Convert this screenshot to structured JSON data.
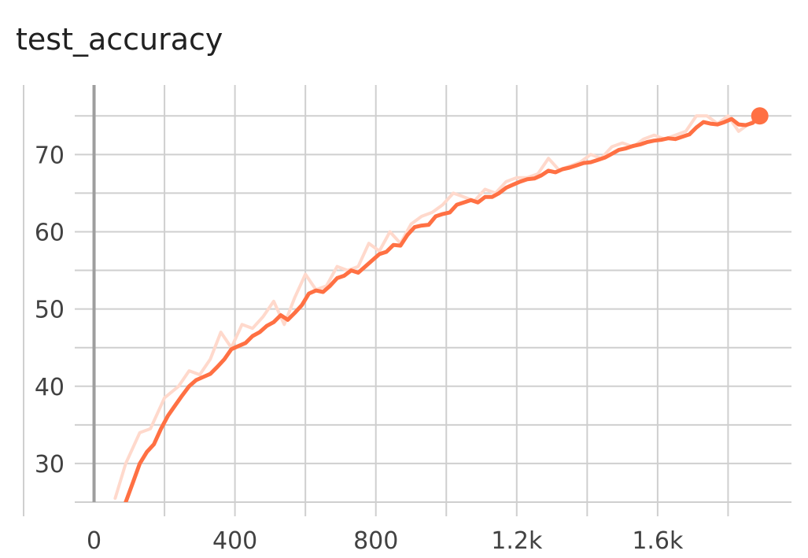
{
  "chart_data": {
    "type": "line",
    "title": "test_accuracy",
    "xlabel": "",
    "ylabel": "",
    "xlim": [
      -200,
      1980
    ],
    "ylim": [
      25,
      79
    ],
    "x_ticks": [
      0,
      400,
      800,
      1200,
      1600
    ],
    "x_tick_labels": [
      "0",
      "400",
      "800",
      "1.2k",
      "1.6k"
    ],
    "y_ticks": [
      30,
      40,
      50,
      60,
      70
    ],
    "y_tick_labels": [
      "30",
      "40",
      "50",
      "60",
      "70"
    ],
    "grid": true,
    "colors": {
      "smoothed": "#ff7043",
      "raw": "#ffd9cc",
      "grid": "#cfcfcf",
      "zero_axis": "#9e9e9e"
    },
    "series": [
      {
        "role": "raw",
        "x": [
          60,
          90,
          130,
          160,
          200,
          240,
          270,
          300,
          330,
          360,
          390,
          420,
          450,
          480,
          510,
          540,
          570,
          600,
          630,
          660,
          690,
          720,
          750,
          780,
          810,
          840,
          870,
          900,
          930,
          960,
          990,
          1020,
          1050,
          1080,
          1110,
          1140,
          1170,
          1200,
          1230,
          1260,
          1290,
          1320,
          1350,
          1380,
          1410,
          1440,
          1470,
          1500,
          1530,
          1560,
          1590,
          1620,
          1650,
          1680,
          1710,
          1740,
          1770,
          1800,
          1830,
          1860,
          1890
        ],
        "y": [
          25.5,
          30.0,
          34.0,
          34.5,
          38.5,
          40.0,
          42.0,
          41.5,
          43.5,
          47.0,
          45.0,
          48.0,
          47.5,
          49.0,
          51.0,
          48.0,
          51.5,
          54.5,
          52.5,
          53.0,
          55.5,
          55.0,
          55.5,
          58.5,
          57.5,
          60.0,
          58.5,
          61.0,
          62.0,
          62.5,
          63.5,
          65.0,
          64.5,
          64.0,
          65.5,
          65.0,
          66.5,
          67.0,
          67.0,
          67.5,
          69.5,
          68.0,
          68.5,
          69.0,
          70.0,
          69.5,
          71.0,
          71.5,
          71.0,
          72.0,
          72.5,
          72.0,
          72.5,
          73.0,
          75.0,
          75.0,
          74.0,
          75.0,
          73.0,
          74.0,
          75.0
        ]
      },
      {
        "role": "smoothed",
        "x": [
          90,
          110,
          130,
          150,
          170,
          190,
          210,
          230,
          250,
          270,
          290,
          310,
          330,
          350,
          370,
          390,
          410,
          430,
          450,
          470,
          490,
          510,
          530,
          550,
          570,
          590,
          610,
          630,
          650,
          670,
          690,
          710,
          730,
          750,
          770,
          790,
          810,
          830,
          850,
          870,
          890,
          910,
          930,
          950,
          970,
          990,
          1010,
          1030,
          1050,
          1070,
          1090,
          1110,
          1130,
          1150,
          1170,
          1190,
          1210,
          1230,
          1250,
          1270,
          1290,
          1310,
          1330,
          1350,
          1370,
          1390,
          1410,
          1430,
          1450,
          1470,
          1490,
          1510,
          1530,
          1550,
          1570,
          1590,
          1610,
          1630,
          1650,
          1670,
          1690,
          1710,
          1730,
          1750,
          1770,
          1790,
          1810,
          1830,
          1850,
          1870,
          1890
        ],
        "y": [
          25.0,
          27.5,
          30.0,
          31.5,
          32.5,
          34.5,
          36.2,
          37.5,
          38.8,
          40.0,
          40.8,
          41.2,
          41.6,
          42.5,
          43.5,
          44.8,
          45.2,
          45.6,
          46.5,
          47.0,
          47.8,
          48.3,
          49.2,
          48.6,
          49.5,
          50.5,
          52.0,
          52.4,
          52.2,
          53.0,
          54.0,
          54.3,
          55.0,
          54.7,
          55.5,
          56.3,
          57.1,
          57.4,
          58.3,
          58.2,
          59.6,
          60.6,
          60.8,
          60.9,
          62.0,
          62.3,
          62.5,
          63.5,
          63.8,
          64.1,
          63.8,
          64.5,
          64.5,
          65.0,
          65.7,
          66.1,
          66.5,
          66.8,
          66.9,
          67.3,
          67.9,
          67.7,
          68.1,
          68.3,
          68.6,
          68.9,
          69.0,
          69.3,
          69.6,
          70.1,
          70.6,
          70.8,
          71.1,
          71.3,
          71.6,
          71.8,
          71.9,
          72.1,
          72.0,
          72.3,
          72.6,
          73.5,
          74.2,
          74.0,
          73.9,
          74.2,
          74.6,
          73.9,
          73.8,
          74.1,
          75.0
        ]
      }
    ]
  }
}
